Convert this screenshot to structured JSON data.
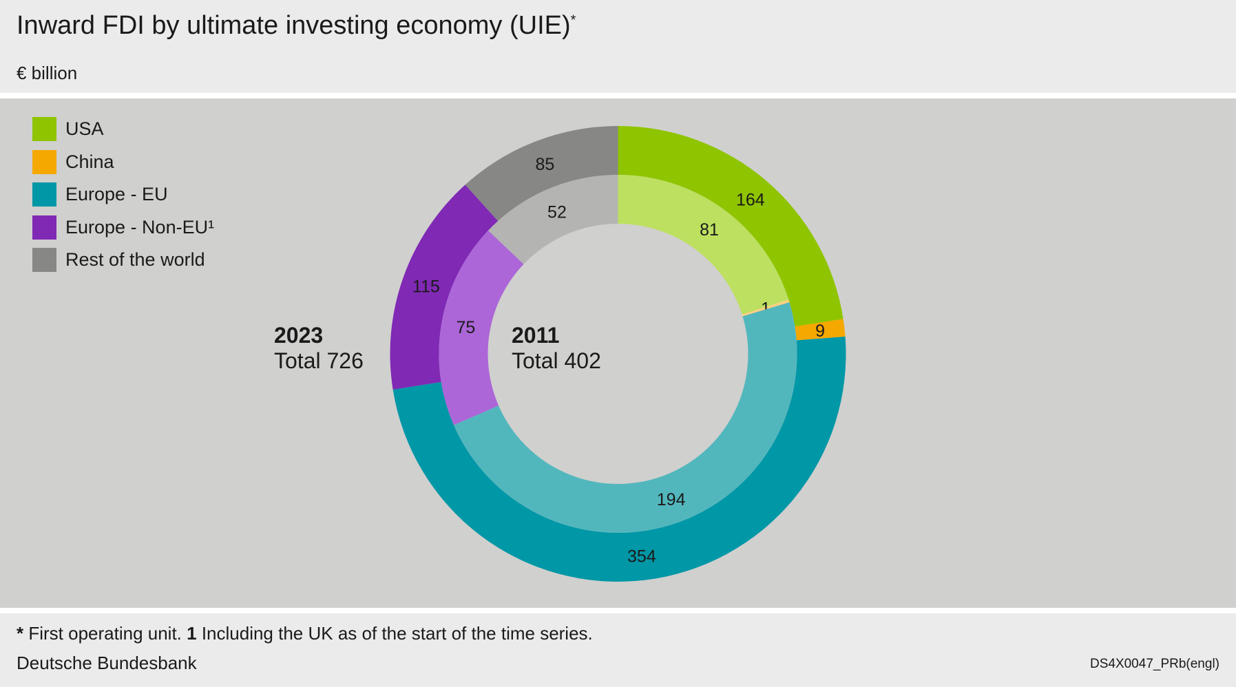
{
  "header": {
    "title": "Inward FDI by ultimate investing economy (UIE)",
    "title_mark": "*",
    "subtitle": "€ billion"
  },
  "chart_data": {
    "type": "pie",
    "variant": "nested-donut",
    "title": "Inward FDI by ultimate investing economy (UIE)",
    "unit": "€ billion",
    "categories": [
      "USA",
      "China",
      "Europe - EU",
      "Europe - Non-EU¹",
      "Rest of the world"
    ],
    "colors_outer": [
      "#8fc400",
      "#f5a800",
      "#0097a7",
      "#8029b5",
      "#878786"
    ],
    "colors_inner": [
      "#bde060",
      "#fcd080",
      "#52b7bd",
      "#ac66d8",
      "#b4b4b3"
    ],
    "series": [
      {
        "name": "2023",
        "ring": "outer",
        "total_label": "Total 726",
        "values": [
          164,
          9,
          354,
          115,
          85
        ]
      },
      {
        "name": "2011",
        "ring": "inner",
        "total_label": "Total 402",
        "values": [
          81,
          1,
          194,
          75,
          52
        ]
      }
    ],
    "legend": "top-left"
  },
  "footer": {
    "note_mark": "*",
    "note_text": " First operating unit. ",
    "note1_mark": "1",
    "note1_text": " Including the UK as of the start of the time series.",
    "source": "Deutsche Bundesbank",
    "code": "DS4X0047_PRb(engl)"
  }
}
